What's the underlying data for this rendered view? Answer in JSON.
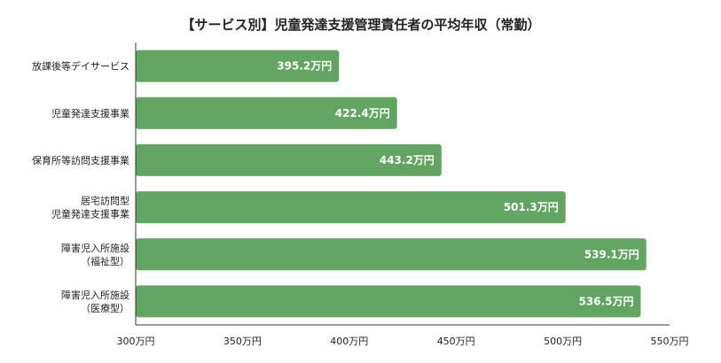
{
  "chart_data": {
    "type": "bar",
    "orientation": "horizontal",
    "title": "【サービス別】児童発達支援管理責任者の平均年収（常勤）",
    "categories": [
      [
        "放課後等デイサービス"
      ],
      [
        "児童発達支援事業"
      ],
      [
        "保育所等訪問支援事業"
      ],
      [
        "居宅訪問型",
        "児童発達支援事業"
      ],
      [
        "障害児入所施設",
        "（福祉型）"
      ],
      [
        "障害児入所施設",
        "（医療型）"
      ]
    ],
    "values": [
      395.2,
      422.4,
      443.2,
      501.3,
      539.1,
      536.5
    ],
    "value_labels": [
      "395.2万円",
      "422.4万円",
      "443.2万円",
      "501.3万円",
      "539.1万円",
      "536.5万円"
    ],
    "xlim": [
      300,
      550
    ],
    "xticks": [
      300,
      350,
      400,
      450,
      500,
      550
    ],
    "xtick_labels": [
      "300万円",
      "350万円",
      "400万円",
      "450万円",
      "500万円",
      "550万円"
    ],
    "grid": false,
    "bar_color": "#62a562"
  }
}
